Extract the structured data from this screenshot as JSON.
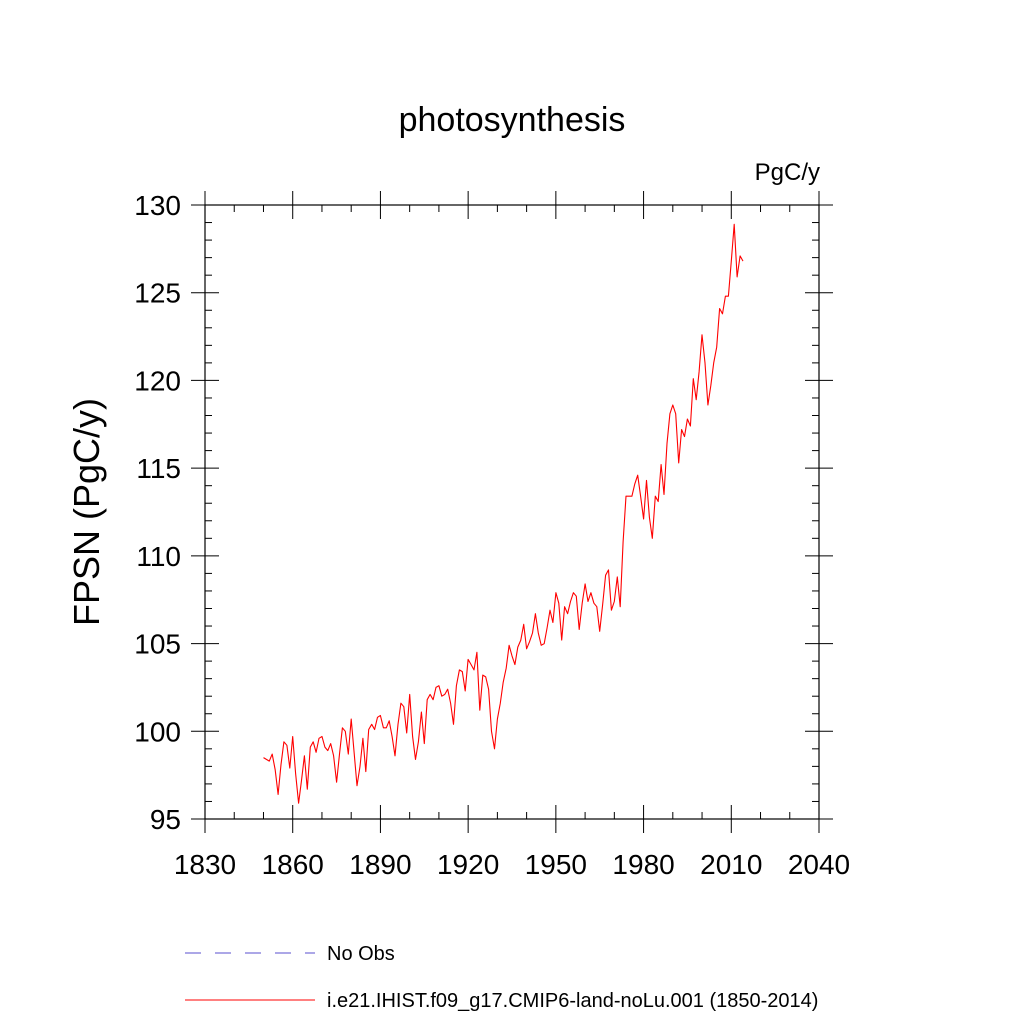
{
  "chart_data": {
    "type": "line",
    "title": "photosynthesis",
    "units": "PgC/y",
    "ylabel": "FPSN  (PgC/y)",
    "xlabel": "",
    "xlim": [
      1830,
      2040
    ],
    "ylim": [
      95,
      130
    ],
    "x_ticks": [
      1830,
      1860,
      1890,
      1920,
      1950,
      1980,
      2010,
      2040
    ],
    "x_minor_step": 10,
    "y_ticks": [
      95,
      100,
      105,
      110,
      115,
      120,
      125,
      130
    ],
    "y_minor_step": 1,
    "grid": false,
    "legend_position": "bottom",
    "series": [
      {
        "name": "No Obs",
        "color": "#5a4fcf",
        "dash": "dashed",
        "x": [],
        "values": []
      },
      {
        "name": "i.e21.IHIST.f09_g17.CMIP6-land-noLu.001 (1850-2014)",
        "color": "#ff0000",
        "dash": "solid",
        "x": [
          1850,
          1851,
          1852,
          1853,
          1854,
          1855,
          1856,
          1857,
          1858,
          1859,
          1860,
          1861,
          1862,
          1863,
          1864,
          1865,
          1866,
          1867,
          1868,
          1869,
          1870,
          1871,
          1872,
          1873,
          1874,
          1875,
          1876,
          1877,
          1878,
          1879,
          1880,
          1881,
          1882,
          1883,
          1884,
          1885,
          1886,
          1887,
          1888,
          1889,
          1890,
          1891,
          1892,
          1893,
          1894,
          1895,
          1896,
          1897,
          1898,
          1899,
          1900,
          1901,
          1902,
          1903,
          1904,
          1905,
          1906,
          1907,
          1908,
          1909,
          1910,
          1911,
          1912,
          1913,
          1914,
          1915,
          1916,
          1917,
          1918,
          1919,
          1920,
          1921,
          1922,
          1923,
          1924,
          1925,
          1926,
          1927,
          1928,
          1929,
          1930,
          1931,
          1932,
          1933,
          1934,
          1935,
          1936,
          1937,
          1938,
          1939,
          1940,
          1941,
          1942,
          1943,
          1944,
          1945,
          1946,
          1947,
          1948,
          1949,
          1950,
          1951,
          1952,
          1953,
          1954,
          1955,
          1956,
          1957,
          1958,
          1959,
          1960,
          1961,
          1962,
          1963,
          1964,
          1965,
          1966,
          1967,
          1968,
          1969,
          1970,
          1971,
          1972,
          1973,
          1974,
          1975,
          1976,
          1977,
          1978,
          1979,
          1980,
          1981,
          1982,
          1983,
          1984,
          1985,
          1986,
          1987,
          1988,
          1989,
          1990,
          1991,
          1992,
          1993,
          1994,
          1995,
          1996,
          1997,
          1998,
          1999,
          2000,
          2001,
          2002,
          2003,
          2004,
          2005,
          2006,
          2007,
          2008,
          2009,
          2010,
          2011,
          2012,
          2013,
          2014
        ],
        "values": [
          98.5,
          98.4,
          98.3,
          98.7,
          97.8,
          96.4,
          98.1,
          99.4,
          99.2,
          97.9,
          99.7,
          97.6,
          95.9,
          97.2,
          98.6,
          96.7,
          99.1,
          99.4,
          98.8,
          99.6,
          99.7,
          99.1,
          98.9,
          99.3,
          98.6,
          97.1,
          98.7,
          100.2,
          100.0,
          98.7,
          100.7,
          98.8,
          96.9,
          98.0,
          99.6,
          97.7,
          100.1,
          100.4,
          100.1,
          100.8,
          100.9,
          100.2,
          100.2,
          100.6,
          99.7,
          98.6,
          100.4,
          101.6,
          101.4,
          99.9,
          102.1,
          99.7,
          98.4,
          99.4,
          101.1,
          99.3,
          101.8,
          102.1,
          101.8,
          102.5,
          102.6,
          102.0,
          102.1,
          102.4,
          101.6,
          100.4,
          102.6,
          103.5,
          103.4,
          102.3,
          104.1,
          103.8,
          103.5,
          104.5,
          101.2,
          103.2,
          103.1,
          102.4,
          100.0,
          99.0,
          100.7,
          101.6,
          102.8,
          103.6,
          104.9,
          104.3,
          103.8,
          104.8,
          105.2,
          106.1,
          104.7,
          105.1,
          105.6,
          106.7,
          105.6,
          104.9,
          105.0,
          105.9,
          106.9,
          106.2,
          107.9,
          107.3,
          105.2,
          107.1,
          106.7,
          107.4,
          107.9,
          107.7,
          105.8,
          107.3,
          108.4,
          107.4,
          107.9,
          107.3,
          107.1,
          105.7,
          107.2,
          108.9,
          109.2,
          106.9,
          107.4,
          108.8,
          107.1,
          110.8,
          113.4,
          113.4,
          113.4,
          114.1,
          114.6,
          113.4,
          112.1,
          114.3,
          112.2,
          111.0,
          113.4,
          113.1,
          115.2,
          113.5,
          116.4,
          118.1,
          118.6,
          118.1,
          115.3,
          117.2,
          116.8,
          117.8,
          117.4,
          120.1,
          118.9,
          120.5,
          122.6,
          121.0,
          118.6,
          119.7,
          121.0,
          121.9,
          124.1,
          123.8,
          124.8,
          124.8,
          126.8,
          128.9,
          125.9,
          127.1,
          126.8
        ]
      }
    ]
  }
}
